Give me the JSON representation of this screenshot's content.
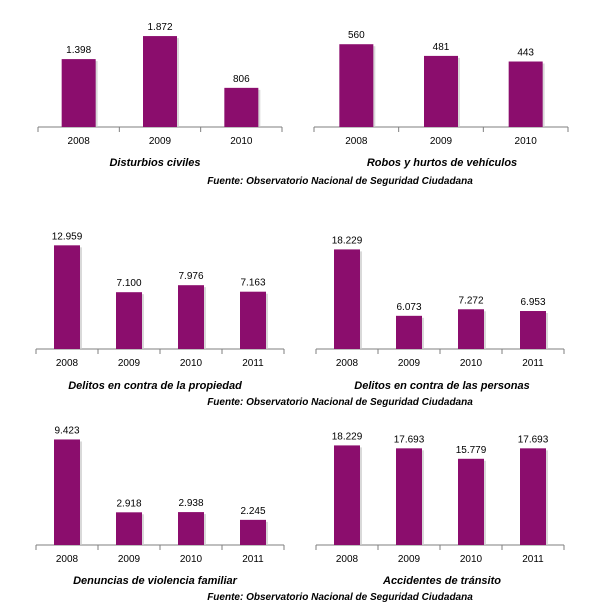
{
  "colors": {
    "bar": "#8b0d6d",
    "bar_shade": "#6e0856",
    "axis": "#7f7f7f"
  },
  "source_label": "Fuente: Observatorio Nacional de Seguridad Ciudadana",
  "chart_data": [
    {
      "type": "bar",
      "title": "Disturbios civiles",
      "categories": [
        "2008",
        "2009",
        "2010"
      ],
      "values": [
        1398,
        1872,
        806
      ],
      "value_labels": [
        "1.398",
        "1.872",
        "806"
      ],
      "ylim": [
        0,
        2100
      ]
    },
    {
      "type": "bar",
      "title": "Robos y hurtos de vehículos",
      "categories": [
        "2008",
        "2009",
        "2010"
      ],
      "values": [
        560,
        481,
        443
      ],
      "value_labels": [
        "560",
        "481",
        "443"
      ],
      "ylim": [
        0,
        690
      ]
    },
    {
      "type": "bar",
      "title": "Delitos en contra de la propiedad",
      "categories": [
        "2008",
        "2009",
        "2010",
        "2011"
      ],
      "values": [
        12959,
        7100,
        7976,
        7163
      ],
      "value_labels": [
        "12.959",
        "7.100",
        "7.976",
        "7.163"
      ],
      "ylim": [
        0,
        14000
      ]
    },
    {
      "type": "bar",
      "title": "Delitos en contra de las personas",
      "categories": [
        "2008",
        "2009",
        "2010",
        "2011"
      ],
      "values": [
        18229,
        6073,
        7272,
        6953
      ],
      "value_labels": [
        "18.229",
        "6.073",
        "7.272",
        "6.953"
      ],
      "ylim": [
        0,
        20500
      ]
    },
    {
      "type": "bar",
      "title": "Denuncias de violencia familiar",
      "categories": [
        "2008",
        "2009",
        "2010",
        "2011"
      ],
      "values": [
        9423,
        2918,
        2938,
        2245
      ],
      "value_labels": [
        "9.423",
        "2.918",
        "2.938",
        "2.245"
      ],
      "ylim": [
        0,
        10000
      ]
    },
    {
      "type": "bar",
      "title": "Accidentes de tránsito",
      "categories": [
        "2008",
        "2009",
        "2010",
        "2011"
      ],
      "values": [
        18229,
        17693,
        15779,
        17693
      ],
      "value_labels": [
        "18.229",
        "17.693",
        "15.779",
        "17.693"
      ],
      "ylim": [
        0,
        20500
      ]
    }
  ]
}
